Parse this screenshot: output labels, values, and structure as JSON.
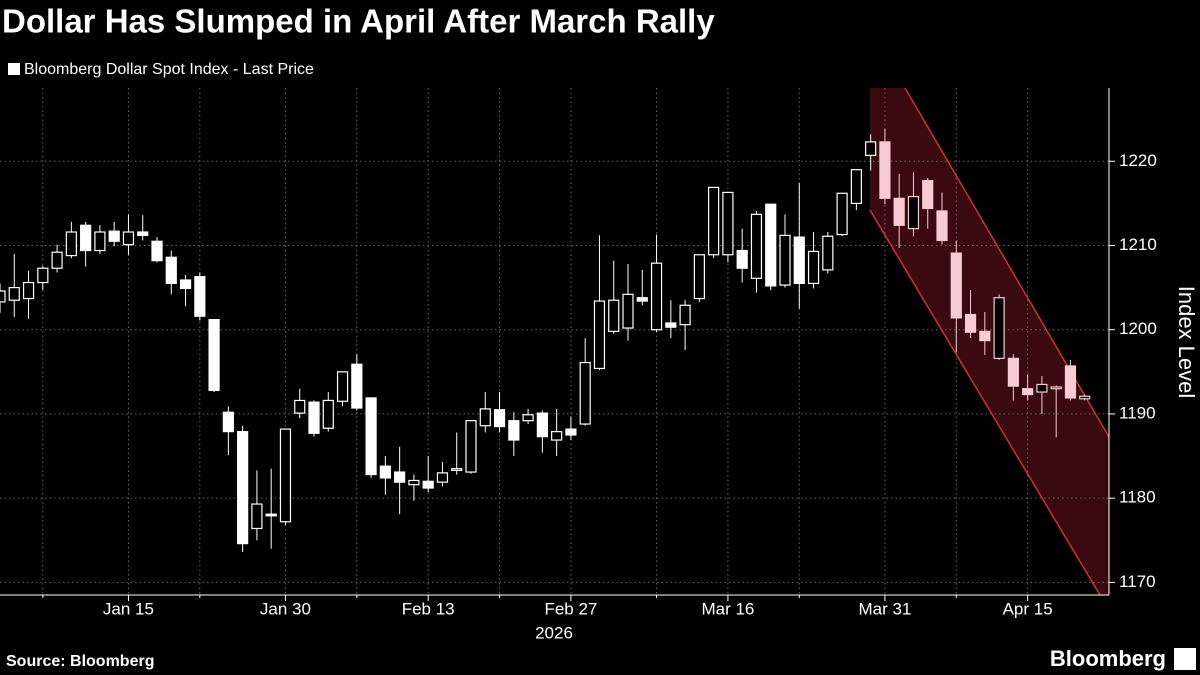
{
  "chart_data": {
    "type": "candlestick",
    "title": "Dollar Has Slumped in April After March Rally",
    "y_label": "Index Level",
    "x_label": "2026",
    "source": "Source: Bloomberg",
    "brand": "Bloomberg",
    "highlight_color": "#f6cbd2",
    "series": [
      {
        "name": "Bloomberg Dollar Spot Index - Last Price",
        "color": "#ffffff",
        "x": [
          0,
          1,
          2,
          3,
          4,
          5,
          6,
          7,
          8,
          9,
          10,
          11,
          12,
          13,
          14,
          15,
          16,
          17,
          18,
          19,
          20,
          21,
          22,
          23,
          24,
          25,
          26,
          27,
          28,
          29,
          30,
          31,
          32,
          33,
          34,
          35,
          36,
          37,
          38,
          39,
          40,
          41,
          42,
          43,
          44,
          45,
          46,
          47,
          48,
          49,
          50,
          51,
          52,
          53,
          54,
          55,
          56,
          57,
          58,
          59,
          60,
          61,
          62,
          63,
          64,
          65,
          66,
          67,
          68,
          69,
          70,
          71,
          72,
          73,
          74,
          75,
          76
        ],
        "open": [
          1203.3,
          1203.5,
          1203.7,
          1205.6,
          1207.3,
          1208.8,
          1212.4,
          1209.4,
          1211.7,
          1210.1,
          1211.6,
          1210.5,
          1208.6,
          1205.9,
          1206.3,
          1201.2,
          1190.2,
          1187.9,
          1176.4,
          1178.1,
          1177.2,
          1190.1,
          1191.4,
          1188.3,
          1191.5,
          1195.9,
          1191.9,
          1183.8,
          1183.1,
          1181.6,
          1182,
          1181.9,
          1183.3,
          1183.1,
          1188.6,
          1190.5,
          1189.2,
          1189.2,
          1190.1,
          1186.9,
          1188.2,
          1188.8,
          1195.4,
          1199.8,
          1200.2,
          1203.8,
          1200,
          1200.8,
          1200.6,
          1203.7,
          1208.9,
          1208.9,
          1209.4,
          1206.1,
          1214.9,
          1205.3,
          1211,
          1205.5,
          1207.1,
          1211.3,
          1215,
          1220.7,
          1222.3,
          1215.6,
          1212,
          1217.7,
          1214.1,
          1209.1,
          1201.8,
          1199.8,
          1196.6,
          1196.6,
          1193,
          1192.6,
          1193,
          1195.7,
          1191.8
        ],
        "high": [
          1205.5,
          1209,
          1207,
          1207.6,
          1210.1,
          1212.8,
          1212.8,
          1212.4,
          1212.8,
          1213.7,
          1213.6,
          1211,
          1209.4,
          1206.5,
          1206.8,
          1201.2,
          1190.9,
          1188.6,
          1183.3,
          1183.5,
          1188.2,
          1193,
          1191.6,
          1192.6,
          1195,
          1197.1,
          1191.9,
          1185,
          1186.1,
          1182.8,
          1185,
          1184.3,
          1187.8,
          1189.2,
          1192.6,
          1192.6,
          1190.2,
          1190.6,
          1190.4,
          1190.6,
          1189.7,
          1199,
          1211.2,
          1208.2,
          1207.8,
          1207.1,
          1211.3,
          1203.5,
          1203.5,
          1208.9,
          1216.9,
          1216.3,
          1212,
          1214.1,
          1214.9,
          1213.7,
          1217.4,
          1211.6,
          1211.6,
          1216.2,
          1219,
          1223.2,
          1223.9,
          1218.5,
          1218.7,
          1218,
          1216.3,
          1210.6,
          1204.7,
          1202.1,
          1204.2,
          1197.1,
          1194.7,
          1194.5,
          1193.4,
          1196.4,
          1192.3
        ],
        "low": [
          1202,
          1201.5,
          1201.3,
          1204.7,
          1206.8,
          1208.5,
          1207.5,
          1209,
          1209.9,
          1208.9,
          1210.6,
          1208,
          1204.2,
          1202.8,
          1201.1,
          1192.6,
          1185.1,
          1173.6,
          1175,
          1174,
          1176.8,
          1189.5,
          1187.3,
          1187.9,
          1190.9,
          1190.4,
          1182.4,
          1180.4,
          1178.1,
          1179.7,
          1180.7,
          1181.4,
          1182.8,
          1182.9,
          1187.8,
          1187.8,
          1185,
          1188.8,
          1185.4,
          1185,
          1186.9,
          1188.6,
          1195.2,
          1199.5,
          1198.7,
          1202.9,
          1199.7,
          1199,
          1197.6,
          1203.3,
          1208.5,
          1208,
          1205.6,
          1204.4,
          1204.7,
          1205,
          1202.5,
          1204.9,
          1206.7,
          1211.1,
          1214.2,
          1218.9,
          1214.9,
          1209.7,
          1211.1,
          1212,
          1210.1,
          1197.3,
          1199,
          1197,
          1196.4,
          1191.6,
          1191.6,
          1190,
          1187.2,
          1191.6,
          1191.6
        ],
        "close": [
          1204.6,
          1205,
          1205.6,
          1207.3,
          1209.2,
          1211.6,
          1209.4,
          1211.6,
          1210.5,
          1211.6,
          1211.2,
          1208.2,
          1205.5,
          1204.9,
          1201.6,
          1192.8,
          1187.9,
          1174.6,
          1179.3,
          1177.9,
          1188.2,
          1191.6,
          1187.7,
          1191.6,
          1195,
          1190.7,
          1182.8,
          1182.4,
          1181.9,
          1182.1,
          1181.2,
          1183,
          1183.5,
          1189.2,
          1190.6,
          1188.5,
          1186.9,
          1189.9,
          1187.3,
          1187.9,
          1187.5,
          1196.1,
          1203.4,
          1203.5,
          1204.2,
          1203.4,
          1207.9,
          1200.3,
          1202.9,
          1208.9,
          1216.9,
          1216.3,
          1207.3,
          1213.7,
          1205.2,
          1211.2,
          1205.5,
          1209.3,
          1211.1,
          1216.2,
          1219,
          1222.3,
          1215.6,
          1212.4,
          1215.8,
          1214.4,
          1210.6,
          1201.4,
          1199.7,
          1198.7,
          1203.8,
          1193.3,
          1192.3,
          1193.5,
          1193.2,
          1191.9,
          1192.1
        ]
      }
    ],
    "xlim": [
      0,
      77.7
    ],
    "xticks": [
      {
        "value": 9,
        "label": "Jan 15"
      },
      {
        "value": 20,
        "label": "Jan 30"
      },
      {
        "value": 30,
        "label": "Feb 13"
      },
      {
        "value": 40,
        "label": "Feb 27"
      },
      {
        "value": 51,
        "label": "Mar 16"
      },
      {
        "value": 62,
        "label": "Mar 31"
      },
      {
        "value": 72,
        "label": "Apr 15"
      }
    ],
    "xminorticks": [
      3,
      14,
      25,
      35,
      46,
      56,
      67
    ],
    "ylim": [
      1168.5,
      1228.7
    ],
    "yticks": [
      1170,
      1180,
      1190,
      1200,
      1210,
      1220
    ],
    "grid": true
  }
}
